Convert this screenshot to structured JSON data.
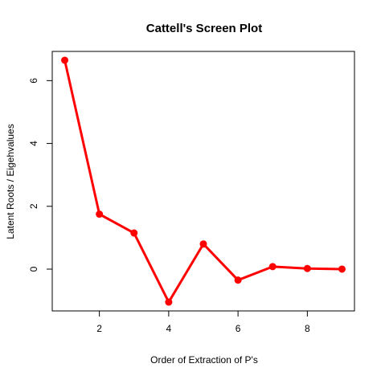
{
  "chart_data": {
    "type": "line",
    "title": "Cattell's Screen Plot",
    "xlabel": "Order of Extraction of P's",
    "ylabel": "Latent Roots / Eigehvalues",
    "x": [
      1,
      2,
      3,
      4,
      5,
      6,
      7,
      8,
      9
    ],
    "series": [
      {
        "values": [
          6.65,
          1.75,
          1.15,
          -1.05,
          0.8,
          -0.35,
          0.08,
          0.02,
          0.0
        ]
      }
    ],
    "xlim": [
      0.64,
      9.36
    ],
    "ylim": [
      -1.33,
      6.93
    ],
    "xticks": [
      2,
      4,
      6,
      8
    ],
    "yticks": [
      0,
      2,
      4,
      6
    ],
    "grid": false,
    "line_color": "#ff0000",
    "point_color": "#ff0000"
  }
}
